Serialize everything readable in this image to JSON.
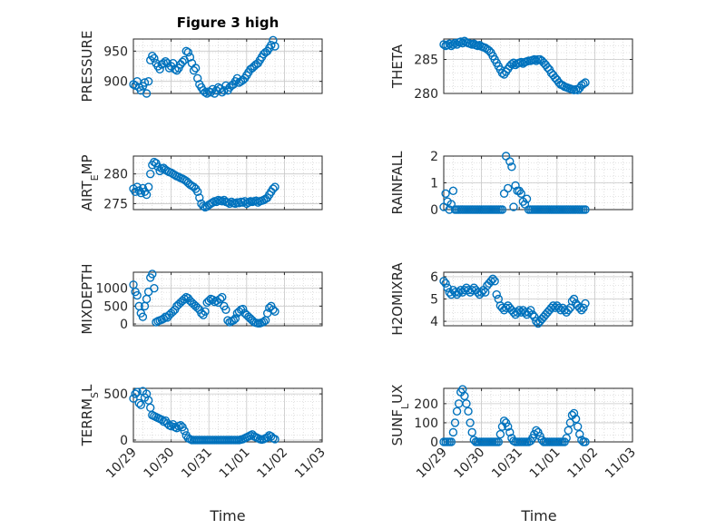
{
  "figure": {
    "title": "Figure 3 high",
    "xlabel": "Time",
    "x_ticks": [
      "10/29",
      "10/30",
      "10/31",
      "11/01",
      "11/02",
      "11/03"
    ]
  },
  "colors": {
    "marker": "#0072BD",
    "axes": "#262626",
    "grid": "#c8c8c8",
    "background": "#ffffff"
  },
  "chart_data": [
    {
      "type": "scatter",
      "title": "Figure 3 high",
      "ylabel": "PRESSURE",
      "xlim": [
        0,
        5
      ],
      "ylim": [
        880,
        970
      ],
      "yticks": [
        900,
        950
      ],
      "ytick_labels": [
        "900",
        "950"
      ],
      "x": [
        0.0,
        0.05,
        0.1,
        0.15,
        0.2,
        0.25,
        0.3,
        0.35,
        0.4,
        0.45,
        0.5,
        0.55,
        0.6,
        0.65,
        0.7,
        0.75,
        0.8,
        0.85,
        0.9,
        0.95,
        1.0,
        1.05,
        1.1,
        1.15,
        1.2,
        1.25,
        1.3,
        1.35,
        1.4,
        1.45,
        1.5,
        1.55,
        1.6,
        1.65,
        1.7,
        1.75,
        1.8,
        1.85,
        1.9,
        1.95,
        2.0,
        2.05,
        2.1,
        2.15,
        2.2,
        2.25,
        2.3,
        2.35,
        2.4,
        2.45,
        2.5,
        2.55,
        2.6,
        2.65,
        2.7,
        2.75,
        2.8,
        2.85,
        2.9,
        2.95,
        3.0,
        3.05,
        3.1,
        3.15,
        3.2,
        3.25,
        3.3,
        3.35,
        3.4,
        3.45,
        3.5,
        3.55,
        3.6,
        3.65,
        3.7,
        3.75
      ],
      "y": [
        895,
        893,
        900,
        890,
        885,
        892,
        898,
        880,
        900,
        935,
        942,
        938,
        930,
        925,
        920,
        928,
        930,
        933,
        930,
        922,
        925,
        930,
        920,
        918,
        922,
        928,
        932,
        935,
        950,
        948,
        940,
        930,
        918,
        922,
        905,
        895,
        890,
        885,
        882,
        880,
        883,
        882,
        887,
        880,
        885,
        890,
        888,
        882,
        885,
        893,
        885,
        890,
        893,
        895,
        900,
        905,
        898,
        900,
        902,
        905,
        910,
        915,
        920,
        922,
        925,
        928,
        930,
        935,
        940,
        945,
        948,
        950,
        955,
        960,
        968,
        958
      ]
    },
    {
      "type": "scatter",
      "ylabel": "THETA",
      "xlim": [
        0,
        5
      ],
      "ylim": [
        280,
        288
      ],
      "yticks": [
        280,
        285
      ],
      "ytick_labels": [
        "280",
        "285"
      ],
      "x": [
        0.0,
        0.05,
        0.1,
        0.15,
        0.2,
        0.25,
        0.3,
        0.35,
        0.4,
        0.45,
        0.5,
        0.55,
        0.6,
        0.65,
        0.7,
        0.75,
        0.8,
        0.85,
        0.9,
        0.95,
        1.0,
        1.05,
        1.1,
        1.15,
        1.2,
        1.25,
        1.3,
        1.35,
        1.4,
        1.45,
        1.5,
        1.55,
        1.6,
        1.65,
        1.7,
        1.75,
        1.8,
        1.85,
        1.9,
        1.95,
        2.0,
        2.05,
        2.1,
        2.15,
        2.2,
        2.25,
        2.3,
        2.35,
        2.4,
        2.45,
        2.5,
        2.55,
        2.6,
        2.65,
        2.7,
        2.75,
        2.8,
        2.85,
        2.9,
        2.95,
        3.0,
        3.05,
        3.1,
        3.15,
        3.2,
        3.25,
        3.3,
        3.35,
        3.4,
        3.45,
        3.5,
        3.55,
        3.6,
        3.65,
        3.7,
        3.75
      ],
      "y": [
        287.2,
        287.0,
        287.1,
        287.3,
        287.0,
        287.2,
        287.4,
        287.2,
        287.5,
        287.6,
        287.4,
        287.7,
        287.5,
        287.4,
        287.3,
        287.2,
        287.3,
        287.1,
        287.0,
        287.1,
        286.9,
        286.8,
        286.7,
        286.5,
        286.3,
        286.0,
        285.5,
        285.0,
        284.5,
        284.0,
        283.5,
        283.0,
        282.8,
        283.2,
        283.6,
        284.0,
        284.3,
        284.5,
        284.2,
        284.4,
        284.5,
        284.6,
        284.4,
        284.6,
        284.7,
        284.8,
        284.8,
        284.9,
        285.0,
        284.8,
        285.0,
        285.0,
        284.8,
        284.5,
        284.2,
        283.8,
        283.5,
        283.0,
        282.7,
        282.3,
        282.0,
        281.6,
        281.3,
        281.2,
        281.0,
        280.9,
        280.8,
        280.7,
        280.6,
        280.5,
        280.6,
        280.5,
        280.8,
        281.2,
        281.4,
        281.6
      ]
    },
    {
      "type": "scatter",
      "ylabel": "AIR_TEMP",
      "xlim": [
        0,
        5
      ],
      "ylim": [
        274,
        283
      ],
      "yticks": [
        275,
        280
      ],
      "ytick_labels": [
        "275",
        "280"
      ],
      "x": [
        0.0,
        0.05,
        0.1,
        0.15,
        0.2,
        0.25,
        0.3,
        0.35,
        0.4,
        0.45,
        0.5,
        0.55,
        0.6,
        0.65,
        0.7,
        0.75,
        0.8,
        0.85,
        0.9,
        0.95,
        1.0,
        1.05,
        1.1,
        1.15,
        1.2,
        1.25,
        1.3,
        1.35,
        1.4,
        1.45,
        1.5,
        1.55,
        1.6,
        1.65,
        1.7,
        1.75,
        1.8,
        1.85,
        1.9,
        1.95,
        2.0,
        2.05,
        2.1,
        2.15,
        2.2,
        2.25,
        2.3,
        2.35,
        2.4,
        2.45,
        2.5,
        2.55,
        2.6,
        2.65,
        2.7,
        2.75,
        2.8,
        2.85,
        2.9,
        2.95,
        3.0,
        3.05,
        3.1,
        3.15,
        3.2,
        3.25,
        3.3,
        3.35,
        3.4,
        3.45,
        3.5,
        3.55,
        3.6,
        3.65,
        3.7,
        3.75
      ],
      "y": [
        277.5,
        277.0,
        277.8,
        277.2,
        276.8,
        277.6,
        277.0,
        276.5,
        277.8,
        280.0,
        281.5,
        282.0,
        281.8,
        281.2,
        280.5,
        280.9,
        281.0,
        280.7,
        280.5,
        280.3,
        280.2,
        280.0,
        279.8,
        279.6,
        279.5,
        279.3,
        279.2,
        279.0,
        278.8,
        278.5,
        278.2,
        278.0,
        277.8,
        277.5,
        277.0,
        276.0,
        275.0,
        274.6,
        274.4,
        274.5,
        274.8,
        275.0,
        275.2,
        275.4,
        275.3,
        275.6,
        275.5,
        275.4,
        275.6,
        275.3,
        275.2,
        275.0,
        275.3,
        275.1,
        275.0,
        275.2,
        275.1,
        275.3,
        275.2,
        275.4,
        275.0,
        275.2,
        275.4,
        275.3,
        275.4,
        275.5,
        275.2,
        275.4,
        275.5,
        275.6,
        275.8,
        276.0,
        276.5,
        277.0,
        277.5,
        277.8
      ]
    },
    {
      "type": "scatter",
      "ylabel": "RAINFALL",
      "xlim": [
        0,
        5
      ],
      "ylim": [
        0,
        2
      ],
      "yticks": [
        0,
        1,
        2
      ],
      "ytick_labels": [
        "0",
        "1",
        "2"
      ],
      "x": [
        0.0,
        0.05,
        0.1,
        0.15,
        0.2,
        0.25,
        0.3,
        0.35,
        0.4,
        0.45,
        0.5,
        0.55,
        0.6,
        0.65,
        0.7,
        0.75,
        0.8,
        0.85,
        0.9,
        0.95,
        1.0,
        1.05,
        1.1,
        1.15,
        1.2,
        1.25,
        1.3,
        1.35,
        1.4,
        1.45,
        1.5,
        1.55,
        1.6,
        1.65,
        1.7,
        1.75,
        1.8,
        1.85,
        1.9,
        1.95,
        2.0,
        2.05,
        2.1,
        2.15,
        2.2,
        2.25,
        2.3,
        2.35,
        2.4,
        2.45,
        2.5,
        2.55,
        2.6,
        2.65,
        2.7,
        2.75,
        2.8,
        2.85,
        2.9,
        2.95,
        3.0,
        3.05,
        3.1,
        3.15,
        3.2,
        3.25,
        3.3,
        3.35,
        3.4,
        3.45,
        3.5,
        3.55,
        3.6,
        3.65,
        3.7,
        3.75
      ],
      "y": [
        0.1,
        0.6,
        0.3,
        0,
        0.2,
        0.7,
        0,
        0,
        0,
        0,
        0,
        0,
        0,
        0,
        0,
        0,
        0,
        0,
        0,
        0,
        0,
        0,
        0,
        0,
        0,
        0,
        0,
        0,
        0,
        0,
        0,
        0,
        0.6,
        2.0,
        0.8,
        1.8,
        1.6,
        0.1,
        0.9,
        0.7,
        0.7,
        0.6,
        0.3,
        0.2,
        0.4,
        0,
        0,
        0,
        0,
        0,
        0,
        0,
        0,
        0,
        0,
        0,
        0,
        0,
        0,
        0,
        0,
        0,
        0,
        0,
        0,
        0,
        0,
        0,
        0,
        0,
        0,
        0,
        0,
        0,
        0,
        0
      ]
    },
    {
      "type": "scatter",
      "ylabel": "MIXDEPTH",
      "xlim": [
        0,
        5
      ],
      "ylim": [
        -50,
        1450
      ],
      "yticks": [
        0,
        500,
        1000
      ],
      "ytick_labels": [
        "0",
        "500",
        "1000"
      ],
      "x": [
        0.0,
        0.05,
        0.1,
        0.15,
        0.2,
        0.25,
        0.3,
        0.35,
        0.4,
        0.45,
        0.5,
        0.55,
        0.6,
        0.65,
        0.7,
        0.75,
        0.8,
        0.85,
        0.9,
        0.95,
        1.0,
        1.05,
        1.1,
        1.15,
        1.2,
        1.25,
        1.3,
        1.35,
        1.4,
        1.45,
        1.5,
        1.55,
        1.6,
        1.65,
        1.7,
        1.75,
        1.8,
        1.85,
        1.9,
        1.95,
        2.0,
        2.05,
        2.1,
        2.15,
        2.2,
        2.25,
        2.3,
        2.35,
        2.4,
        2.45,
        2.5,
        2.55,
        2.6,
        2.65,
        2.7,
        2.75,
        2.8,
        2.85,
        2.9,
        2.95,
        3.0,
        3.05,
        3.1,
        3.15,
        3.2,
        3.25,
        3.3,
        3.35,
        3.4,
        3.45,
        3.5,
        3.55,
        3.6,
        3.65,
        3.7,
        3.75
      ],
      "y": [
        1100,
        900,
        800,
        500,
        300,
        200,
        500,
        700,
        900,
        1300,
        1400,
        1000,
        50,
        80,
        100,
        120,
        150,
        200,
        180,
        250,
        300,
        350,
        400,
        500,
        550,
        600,
        650,
        700,
        750,
        720,
        650,
        600,
        550,
        500,
        450,
        400,
        300,
        250,
        350,
        600,
        650,
        700,
        680,
        620,
        650,
        600,
        700,
        750,
        500,
        400,
        100,
        50,
        80,
        100,
        150,
        300,
        350,
        400,
        420,
        300,
        250,
        200,
        150,
        100,
        50,
        30,
        20,
        20,
        40,
        60,
        100,
        300,
        450,
        500,
        400,
        350
      ]
    },
    {
      "type": "scatter",
      "ylabel": "H2OMIXRA",
      "xlim": [
        0,
        5
      ],
      "ylim": [
        3.8,
        6.2
      ],
      "yticks": [
        4,
        5,
        6
      ],
      "ytick_labels": [
        "4",
        "5",
        "6"
      ],
      "x": [
        0.0,
        0.05,
        0.1,
        0.15,
        0.2,
        0.25,
        0.3,
        0.35,
        0.4,
        0.45,
        0.5,
        0.55,
        0.6,
        0.65,
        0.7,
        0.75,
        0.8,
        0.85,
        0.9,
        0.95,
        1.0,
        1.05,
        1.1,
        1.15,
        1.2,
        1.25,
        1.3,
        1.35,
        1.4,
        1.45,
        1.5,
        1.55,
        1.6,
        1.65,
        1.7,
        1.75,
        1.8,
        1.85,
        1.9,
        1.95,
        2.0,
        2.05,
        2.1,
        2.15,
        2.2,
        2.25,
        2.3,
        2.35,
        2.4,
        2.45,
        2.5,
        2.55,
        2.6,
        2.65,
        2.7,
        2.75,
        2.8,
        2.85,
        2.9,
        2.95,
        3.0,
        3.05,
        3.1,
        3.15,
        3.2,
        3.25,
        3.3,
        3.35,
        3.4,
        3.45,
        3.5,
        3.55,
        3.6,
        3.65,
        3.7,
        3.75
      ],
      "y": [
        5.8,
        5.7,
        5.5,
        5.3,
        5.2,
        5.4,
        5.3,
        5.2,
        5.3,
        5.4,
        5.3,
        5.4,
        5.5,
        5.4,
        5.3,
        5.4,
        5.5,
        5.4,
        5.3,
        5.2,
        5.3,
        5.4,
        5.3,
        5.6,
        5.7,
        5.8,
        5.9,
        5.8,
        5.2,
        5.0,
        4.7,
        4.6,
        4.5,
        4.6,
        4.7,
        4.6,
        4.5,
        4.4,
        4.3,
        4.4,
        4.5,
        4.4,
        4.5,
        4.4,
        4.3,
        4.4,
        4.5,
        4.3,
        4.2,
        4.0,
        3.9,
        4.0,
        4.1,
        4.2,
        4.3,
        4.4,
        4.5,
        4.6,
        4.7,
        4.6,
        4.7,
        4.6,
        4.5,
        4.6,
        4.5,
        4.4,
        4.5,
        4.6,
        4.9,
        5.0,
        4.8,
        4.7,
        4.6,
        4.5,
        4.6,
        4.8
      ]
    },
    {
      "type": "scatter",
      "ylabel": "TERR_MSL",
      "xlim": [
        0,
        5
      ],
      "ylim": [
        -20,
        560
      ],
      "yticks": [
        0,
        500
      ],
      "ytick_labels": [
        "0",
        "500"
      ],
      "x": [
        0.0,
        0.05,
        0.1,
        0.15,
        0.2,
        0.25,
        0.3,
        0.35,
        0.4,
        0.45,
        0.5,
        0.55,
        0.6,
        0.65,
        0.7,
        0.75,
        0.8,
        0.85,
        0.9,
        0.95,
        1.0,
        1.05,
        1.1,
        1.15,
        1.2,
        1.25,
        1.3,
        1.35,
        1.4,
        1.45,
        1.5,
        1.55,
        1.6,
        1.65,
        1.7,
        1.75,
        1.8,
        1.85,
        1.9,
        1.95,
        2.0,
        2.05,
        2.1,
        2.15,
        2.2,
        2.25,
        2.3,
        2.35,
        2.4,
        2.45,
        2.5,
        2.55,
        2.6,
        2.65,
        2.7,
        2.75,
        2.8,
        2.85,
        2.9,
        2.95,
        3.0,
        3.05,
        3.1,
        3.15,
        3.2,
        3.25,
        3.3,
        3.35,
        3.4,
        3.45,
        3.5,
        3.55,
        3.6,
        3.65,
        3.7,
        3.75
      ],
      "y": [
        450,
        500,
        520,
        400,
        380,
        530,
        460,
        500,
        430,
        350,
        270,
        260,
        250,
        240,
        230,
        220,
        200,
        210,
        180,
        160,
        150,
        170,
        140,
        130,
        150,
        160,
        140,
        100,
        50,
        20,
        10,
        0,
        0,
        0,
        0,
        0,
        0,
        0,
        0,
        0,
        0,
        0,
        0,
        0,
        0,
        0,
        0,
        0,
        0,
        0,
        0,
        0,
        0,
        0,
        0,
        0,
        0,
        5,
        10,
        20,
        30,
        40,
        50,
        60,
        40,
        30,
        20,
        10,
        5,
        10,
        20,
        30,
        50,
        40,
        20,
        10
      ]
    },
    {
      "type": "scatter",
      "ylabel": "SUN_FLUX",
      "xlim": [
        0,
        5
      ],
      "ylim": [
        0,
        280
      ],
      "yticks": [
        0,
        100,
        200
      ],
      "ytick_labels": [
        "0",
        "100",
        "200"
      ],
      "x": [
        0.0,
        0.05,
        0.1,
        0.15,
        0.2,
        0.25,
        0.3,
        0.35,
        0.4,
        0.45,
        0.5,
        0.55,
        0.6,
        0.65,
        0.7,
        0.75,
        0.8,
        0.85,
        0.9,
        0.95,
        1.0,
        1.05,
        1.1,
        1.15,
        1.2,
        1.25,
        1.3,
        1.35,
        1.4,
        1.45,
        1.5,
        1.55,
        1.6,
        1.65,
        1.7,
        1.75,
        1.8,
        1.85,
        1.9,
        1.95,
        2.0,
        2.05,
        2.1,
        2.15,
        2.2,
        2.25,
        2.3,
        2.35,
        2.4,
        2.45,
        2.5,
        2.55,
        2.6,
        2.65,
        2.7,
        2.75,
        2.8,
        2.85,
        2.9,
        2.95,
        3.0,
        3.05,
        3.1,
        3.15,
        3.2,
        3.25,
        3.3,
        3.35,
        3.4,
        3.45,
        3.5,
        3.55,
        3.6,
        3.65,
        3.7,
        3.75
      ],
      "y": [
        0,
        0,
        0,
        0,
        0,
        50,
        100,
        160,
        200,
        260,
        275,
        240,
        200,
        160,
        100,
        50,
        10,
        0,
        0,
        0,
        0,
        0,
        0,
        0,
        0,
        0,
        0,
        0,
        0,
        0,
        40,
        80,
        110,
        100,
        80,
        50,
        20,
        5,
        0,
        0,
        0,
        0,
        0,
        0,
        0,
        0,
        5,
        20,
        40,
        60,
        50,
        30,
        10,
        0,
        0,
        0,
        0,
        0,
        0,
        0,
        0,
        0,
        0,
        0,
        0,
        20,
        60,
        100,
        140,
        150,
        120,
        80,
        40,
        10,
        0,
        0
      ]
    }
  ]
}
